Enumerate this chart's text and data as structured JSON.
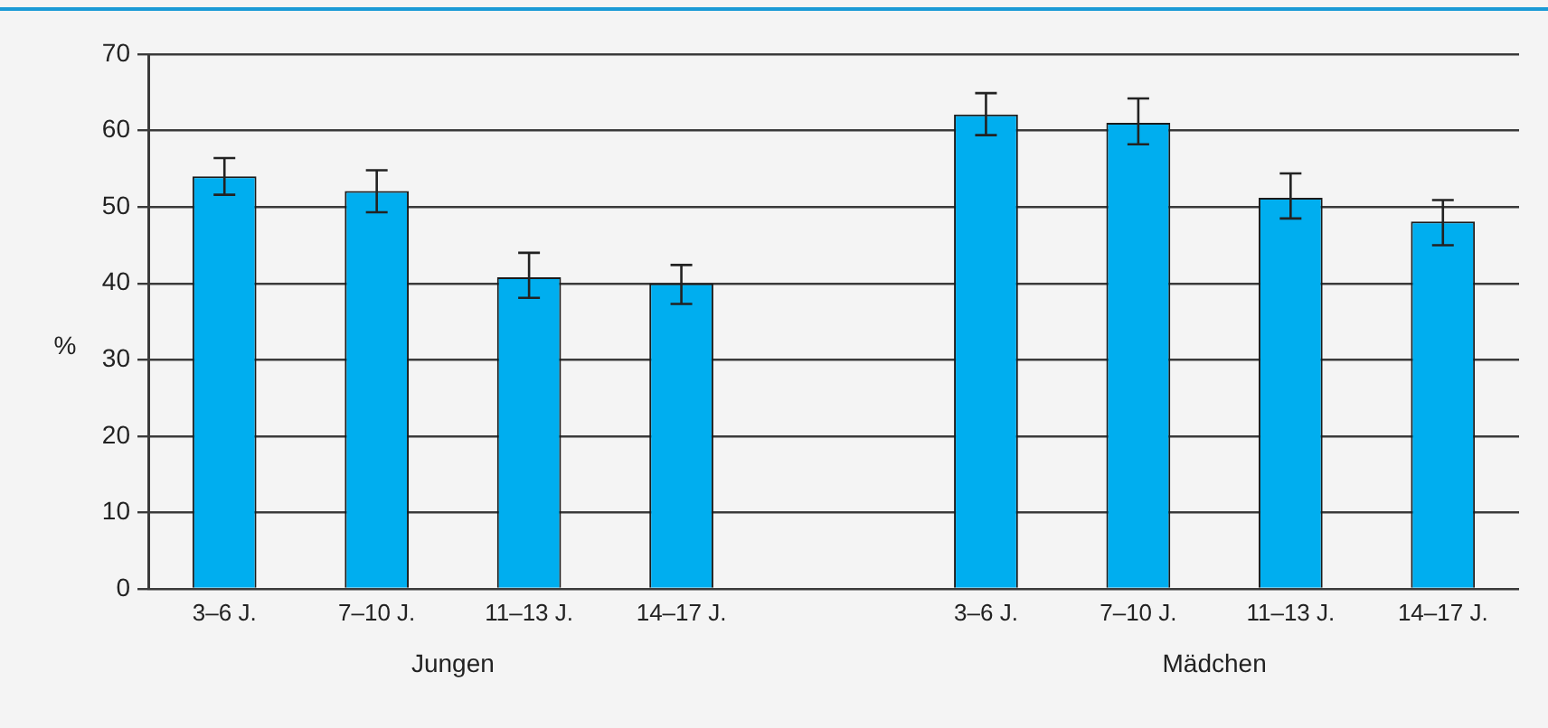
{
  "chart_data": {
    "type": "bar",
    "ylabel": "%",
    "categories": [
      "3–6 J.",
      "7–10 J.",
      "11–13 J.",
      "14–17 J.",
      null,
      "3–6 J.",
      "7–10 J.",
      "11–13 J.",
      "14–17 J."
    ],
    "values": [
      54.0,
      52.1,
      40.8,
      40.0,
      null,
      62.1,
      61.0,
      51.2,
      48.1
    ],
    "errors": [
      [
        51.6,
        56.4
      ],
      [
        49.3,
        54.8
      ],
      [
        38.1,
        44.0
      ],
      [
        37.3,
        42.4
      ],
      null,
      [
        59.4,
        64.9
      ],
      [
        58.2,
        64.2
      ],
      [
        48.5,
        54.4
      ],
      [
        45.0,
        50.9
      ]
    ],
    "color": "#00aeef",
    "ylim": [
      0,
      70
    ],
    "yticks": [
      0,
      10,
      20,
      30,
      40,
      50,
      60,
      70
    ],
    "grid": "y",
    "legend": false,
    "annotations": [
      "Jungen",
      "Mädchen"
    ]
  }
}
